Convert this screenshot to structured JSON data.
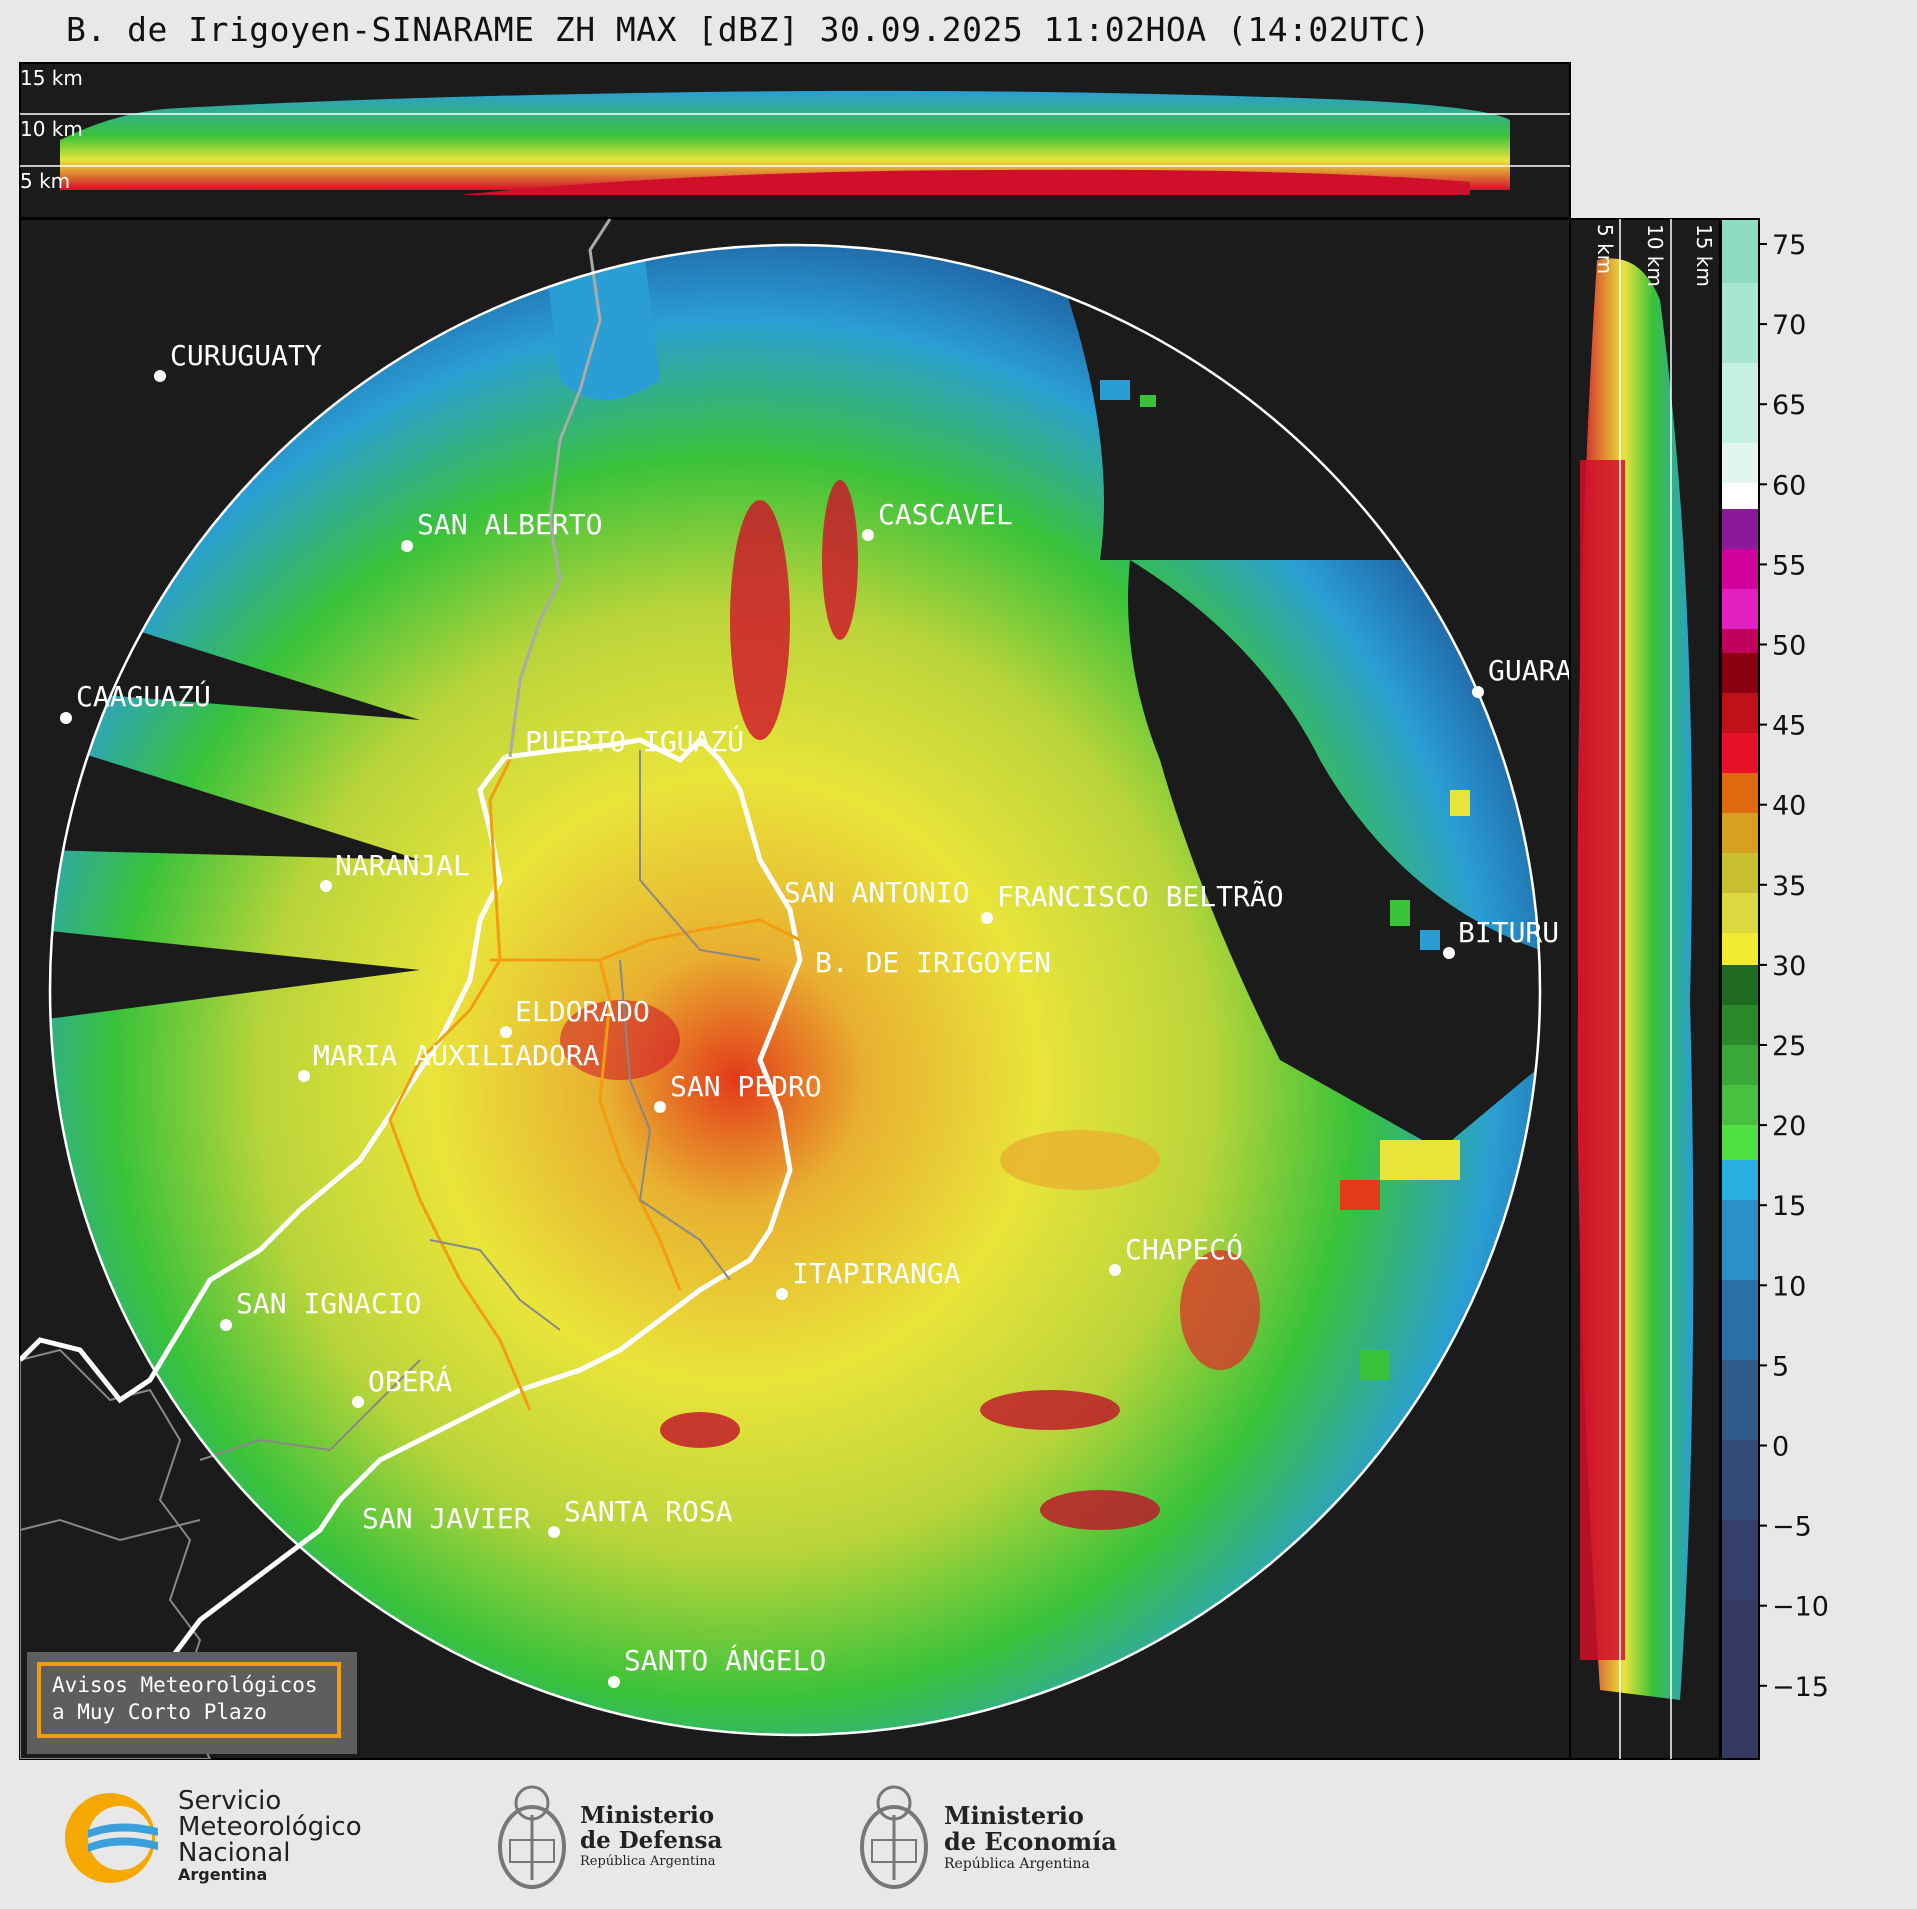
{
  "title": "B. de Irigoyen-SINARAME ZH MAX [dBZ] 30.09.2025 11:02HOA (14:02UTC)",
  "height_labels": [
    "15 km",
    "10 km",
    "5 km"
  ],
  "cities": [
    {
      "name": "CURUGUATY"
    },
    {
      "name": "SAN ALBERTO"
    },
    {
      "name": "CASCAVEL"
    },
    {
      "name": "CAAGUAZÚ"
    },
    {
      "name": "GUARA"
    },
    {
      "name": "PUERTO IGUAZÚ"
    },
    {
      "name": "NARANJAL"
    },
    {
      "name": "SAN ANTONIO"
    },
    {
      "name": "FRANCISCO BELTRÃO"
    },
    {
      "name": "BITURU"
    },
    {
      "name": "B. DE IRIGOYEN"
    },
    {
      "name": "ELDORADO"
    },
    {
      "name": "MARIA AUXILIADORA"
    },
    {
      "name": "SAN PEDRO"
    },
    {
      "name": "CHAPECÓ"
    },
    {
      "name": "ITAPIRANGA"
    },
    {
      "name": "SAN IGNACIO"
    },
    {
      "name": "OBERÁ"
    },
    {
      "name": "SAN JAVIER"
    },
    {
      "name": "SANTA ROSA"
    },
    {
      "name": "SANTO ÁNGELO"
    }
  ],
  "colorbar": {
    "unit": "dBZ",
    "ticks": [
      "75",
      "70",
      "65",
      "60",
      "55",
      "50",
      "45",
      "40",
      "35",
      "30",
      "25",
      "20",
      "15",
      "10",
      "5",
      "0",
      "−5",
      "−10",
      "−15"
    ]
  },
  "warning": {
    "line1": "Avisos Meteorológicos",
    "line2": "a Muy Corto Plazo"
  },
  "logos": {
    "smn": {
      "line1": "Servicio",
      "line2": "Meteorológico",
      "line3": "Nacional",
      "line4": "Argentina"
    },
    "defensa": {
      "line1": "Ministerio",
      "line2": "de Defensa",
      "line3": "República Argentina"
    },
    "economia": {
      "line1": "Ministerio",
      "line2": "de Economía",
      "line3": "República Argentina"
    }
  }
}
